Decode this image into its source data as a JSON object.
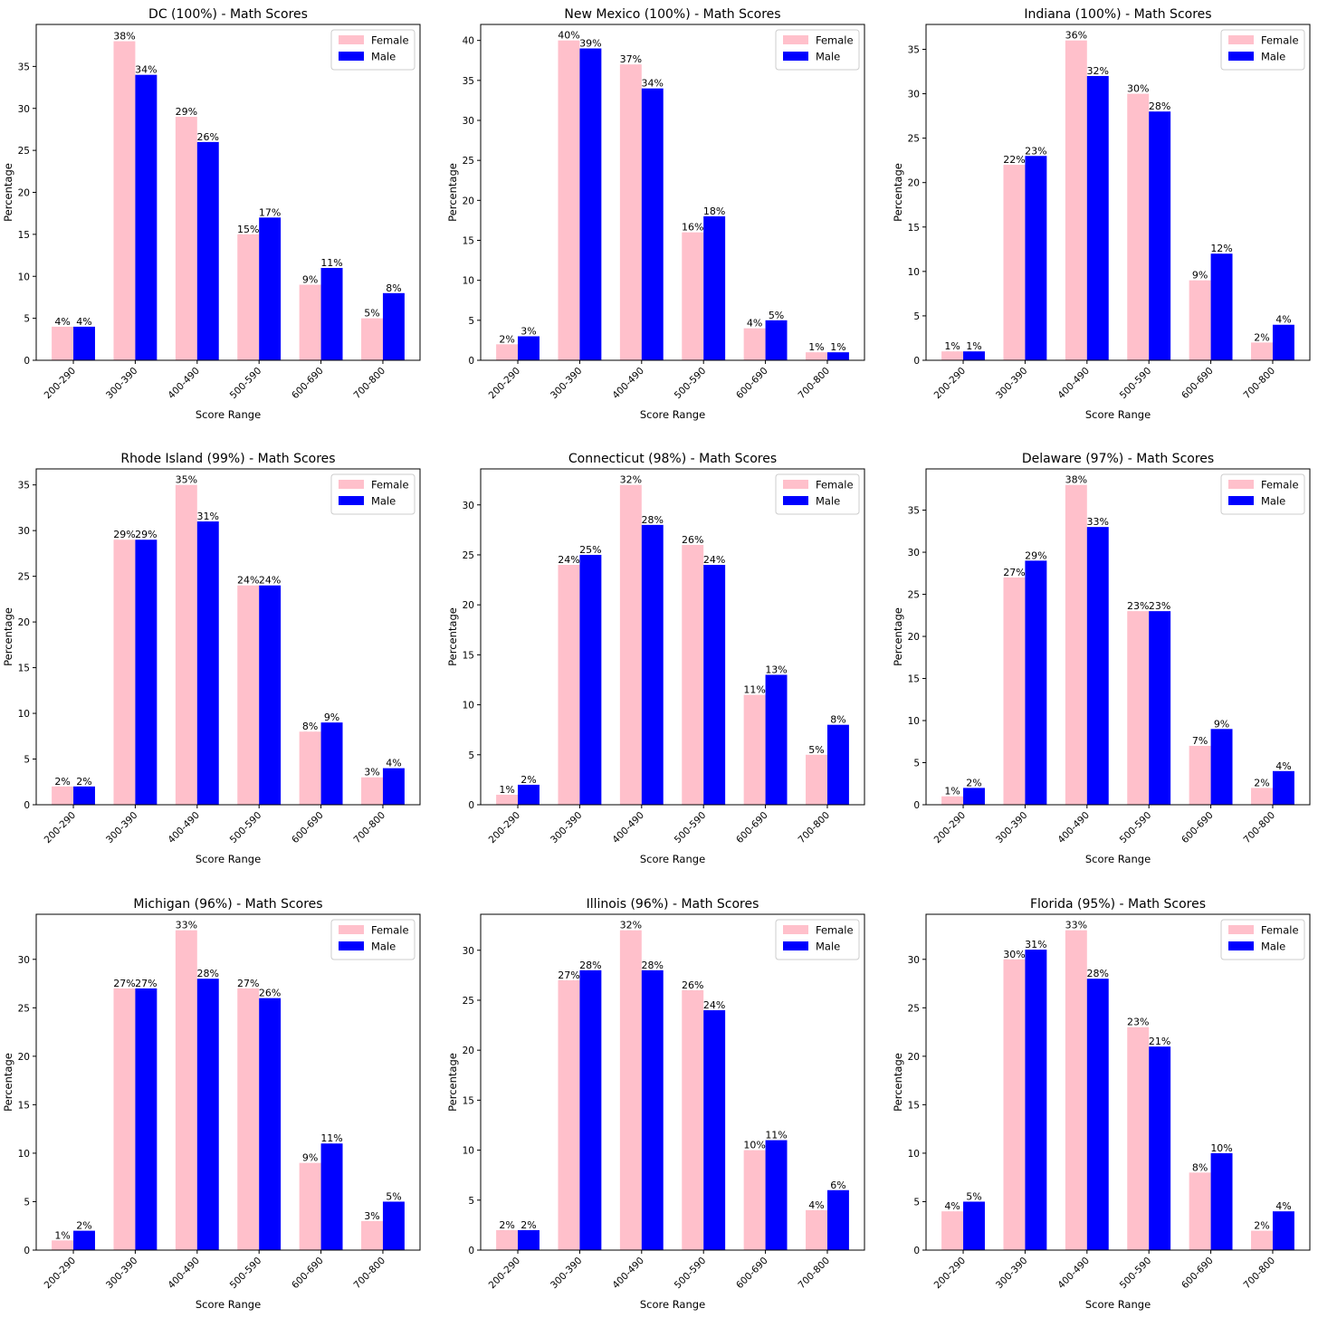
{
  "colors": {
    "female": "#FFC0CB",
    "male": "#0000FF",
    "axis": "#000000",
    "legend_border": "#cccccc"
  },
  "chart_data": [
    {
      "type": "bar",
      "title": "DC (100%) - Math Scores",
      "xlabel": "Score Range",
      "ylabel": "Percentage",
      "categories": [
        "200-290",
        "300-390",
        "400-490",
        "500-590",
        "600-690",
        "700-800"
      ],
      "ylim": [
        0,
        40
      ],
      "yticks": [
        0,
        5,
        10,
        15,
        20,
        25,
        30,
        35
      ],
      "legend_position": "upper right",
      "grid": false,
      "series": [
        {
          "name": "Female",
          "values": [
            4,
            38,
            29,
            15,
            9,
            5
          ],
          "labels": [
            "4%",
            "38%",
            "29%",
            "15%",
            "9%",
            "5%"
          ]
        },
        {
          "name": "Male",
          "values": [
            4,
            34,
            26,
            17,
            11,
            8
          ],
          "labels": [
            "4%",
            "34%",
            "26%",
            "17%",
            "11%",
            "8%"
          ]
        }
      ]
    },
    {
      "type": "bar",
      "title": "New Mexico (100%) - Math Scores",
      "xlabel": "Score Range",
      "ylabel": "Percentage",
      "categories": [
        "200-290",
        "300-390",
        "400-490",
        "500-590",
        "600-690",
        "700-800"
      ],
      "ylim": [
        0,
        42
      ],
      "yticks": [
        0,
        5,
        10,
        15,
        20,
        25,
        30,
        35,
        40
      ],
      "legend_position": "upper right",
      "grid": false,
      "series": [
        {
          "name": "Female",
          "values": [
            2,
            40,
            37,
            16,
            4,
            1
          ],
          "labels": [
            "2%",
            "40%",
            "37%",
            "16%",
            "4%",
            "1%"
          ]
        },
        {
          "name": "Male",
          "values": [
            3,
            39,
            34,
            18,
            5,
            1
          ],
          "labels": [
            "3%",
            "39%",
            "34%",
            "18%",
            "5%",
            "1%"
          ]
        }
      ]
    },
    {
      "type": "bar",
      "title": "Indiana (100%) - Math Scores",
      "xlabel": "Score Range",
      "ylabel": "Percentage",
      "categories": [
        "200-290",
        "300-390",
        "400-490",
        "500-590",
        "600-690",
        "700-800"
      ],
      "ylim": [
        0,
        37.8
      ],
      "yticks": [
        0,
        5,
        10,
        15,
        20,
        25,
        30,
        35
      ],
      "legend_position": "upper right",
      "grid": false,
      "series": [
        {
          "name": "Female",
          "values": [
            1,
            22,
            36,
            30,
            9,
            2
          ],
          "labels": [
            "1%",
            "22%",
            "36%",
            "30%",
            "9%",
            "2%"
          ]
        },
        {
          "name": "Male",
          "values": [
            1,
            23,
            32,
            28,
            12,
            4
          ],
          "labels": [
            "1%",
            "23%",
            "32%",
            "28%",
            "12%",
            "4%"
          ]
        }
      ]
    },
    {
      "type": "bar",
      "title": "Rhode Island (99%) - Math Scores",
      "xlabel": "Score Range",
      "ylabel": "Percentage",
      "categories": [
        "200-290",
        "300-390",
        "400-490",
        "500-590",
        "600-690",
        "700-800"
      ],
      "ylim": [
        0,
        36.75
      ],
      "yticks": [
        0,
        5,
        10,
        15,
        20,
        25,
        30,
        35
      ],
      "legend_position": "upper right",
      "grid": false,
      "series": [
        {
          "name": "Female",
          "values": [
            2,
            29,
            35,
            24,
            8,
            3
          ],
          "labels": [
            "2%",
            "29%",
            "35%",
            "24%",
            "8%",
            "3%"
          ]
        },
        {
          "name": "Male",
          "values": [
            2,
            29,
            31,
            24,
            9,
            4
          ],
          "labels": [
            "2%",
            "29%",
            "31%",
            "24%",
            "9%",
            "4%"
          ]
        }
      ]
    },
    {
      "type": "bar",
      "title": "Connecticut (98%) - Math Scores",
      "xlabel": "Score Range",
      "ylabel": "Percentage",
      "categories": [
        "200-290",
        "300-390",
        "400-490",
        "500-590",
        "600-690",
        "700-800"
      ],
      "ylim": [
        0,
        33.6
      ],
      "yticks": [
        0,
        5,
        10,
        15,
        20,
        25,
        30
      ],
      "legend_position": "upper right",
      "grid": false,
      "series": [
        {
          "name": "Female",
          "values": [
            1,
            24,
            32,
            26,
            11,
            5
          ],
          "labels": [
            "1%",
            "24%",
            "32%",
            "26%",
            "11%",
            "5%"
          ]
        },
        {
          "name": "Male",
          "values": [
            2,
            25,
            28,
            24,
            13,
            8
          ],
          "labels": [
            "2%",
            "25%",
            "28%",
            "24%",
            "13%",
            "8%"
          ]
        }
      ]
    },
    {
      "type": "bar",
      "title": "Delaware (97%) - Math Scores",
      "xlabel": "Score Range",
      "ylabel": "Percentage",
      "categories": [
        "200-290",
        "300-390",
        "400-490",
        "500-590",
        "600-690",
        "700-800"
      ],
      "ylim": [
        0,
        39.9
      ],
      "yticks": [
        0,
        5,
        10,
        15,
        20,
        25,
        30,
        35
      ],
      "legend_position": "upper right",
      "grid": false,
      "series": [
        {
          "name": "Female",
          "values": [
            1,
            27,
            38,
            23,
            7,
            2
          ],
          "labels": [
            "1%",
            "27%",
            "38%",
            "23%",
            "7%",
            "2%"
          ]
        },
        {
          "name": "Male",
          "values": [
            2,
            29,
            33,
            23,
            9,
            4
          ],
          "labels": [
            "2%",
            "29%",
            "33%",
            "23%",
            "9%",
            "4%"
          ]
        }
      ]
    },
    {
      "type": "bar",
      "title": "Michigan (96%) - Math Scores",
      "xlabel": "Score Range",
      "ylabel": "Percentage",
      "categories": [
        "200-290",
        "300-390",
        "400-490",
        "500-590",
        "600-690",
        "700-800"
      ],
      "ylim": [
        0,
        34.65
      ],
      "yticks": [
        0,
        5,
        10,
        15,
        20,
        25,
        30
      ],
      "legend_position": "upper right",
      "grid": false,
      "series": [
        {
          "name": "Female",
          "values": [
            1,
            27,
            33,
            27,
            9,
            3
          ],
          "labels": [
            "1%",
            "27%",
            "33%",
            "27%",
            "9%",
            "3%"
          ]
        },
        {
          "name": "Male",
          "values": [
            2,
            27,
            28,
            26,
            11,
            5
          ],
          "labels": [
            "2%",
            "27%",
            "28%",
            "26%",
            "11%",
            "5%"
          ]
        }
      ]
    },
    {
      "type": "bar",
      "title": "Illinois (96%) - Math Scores",
      "xlabel": "Score Range",
      "ylabel": "Percentage",
      "categories": [
        "200-290",
        "300-390",
        "400-490",
        "500-590",
        "600-690",
        "700-800"
      ],
      "ylim": [
        0,
        33.6
      ],
      "yticks": [
        0,
        5,
        10,
        15,
        20,
        25,
        30
      ],
      "legend_position": "upper right",
      "grid": false,
      "series": [
        {
          "name": "Female",
          "values": [
            2,
            27,
            32,
            26,
            10,
            4
          ],
          "labels": [
            "2%",
            "27%",
            "32%",
            "26%",
            "10%",
            "4%"
          ]
        },
        {
          "name": "Male",
          "values": [
            2,
            28,
            28,
            24,
            11,
            6
          ],
          "labels": [
            "2%",
            "28%",
            "28%",
            "24%",
            "11%",
            "6%"
          ]
        }
      ]
    },
    {
      "type": "bar",
      "title": "Florida (95%) - Math Scores",
      "xlabel": "Score Range",
      "ylabel": "Percentage",
      "categories": [
        "200-290",
        "300-390",
        "400-490",
        "500-590",
        "600-690",
        "700-800"
      ],
      "ylim": [
        0,
        34.65
      ],
      "yticks": [
        0,
        5,
        10,
        15,
        20,
        25,
        30
      ],
      "legend_position": "upper right",
      "grid": false,
      "series": [
        {
          "name": "Female",
          "values": [
            4,
            30,
            33,
            23,
            8,
            2
          ],
          "labels": [
            "4%",
            "30%",
            "33%",
            "23%",
            "8%",
            "2%"
          ]
        },
        {
          "name": "Male",
          "values": [
            5,
            31,
            28,
            21,
            10,
            4
          ],
          "labels": [
            "5%",
            "31%",
            "28%",
            "21%",
            "10%",
            "4%"
          ]
        }
      ]
    }
  ]
}
